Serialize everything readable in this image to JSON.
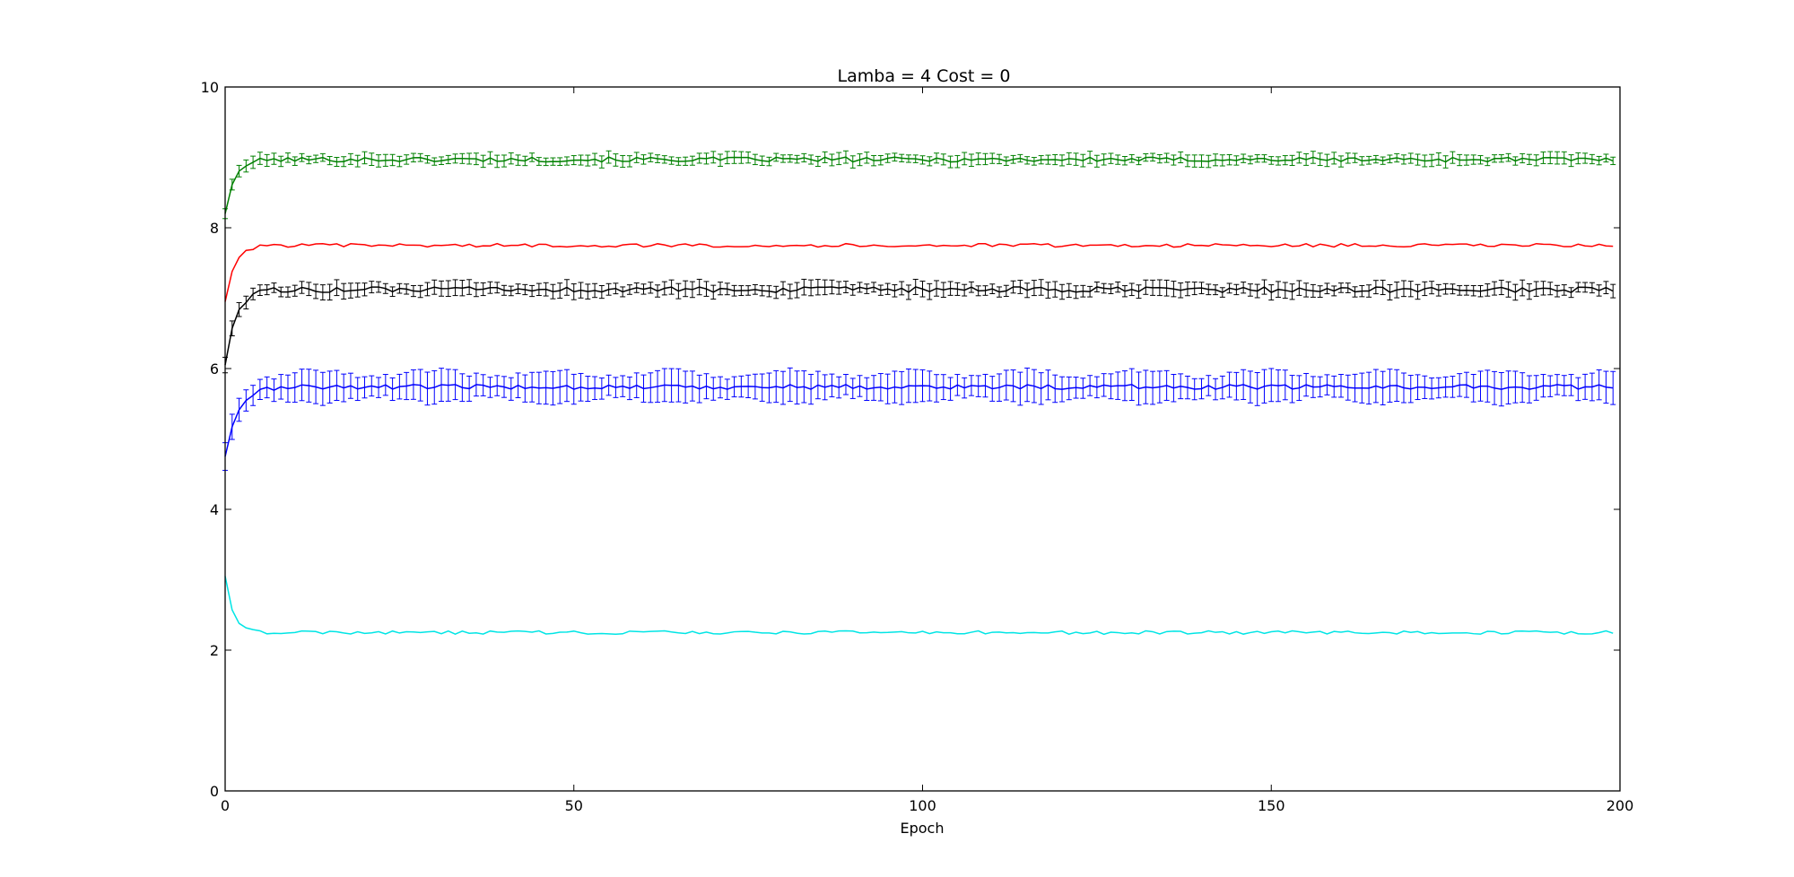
{
  "chart_data": {
    "type": "line",
    "title": "Lamba = 4 Cost = 0",
    "xlabel": "Epoch",
    "ylabel": "",
    "xlim": [
      0,
      200
    ],
    "ylim": [
      0,
      10
    ],
    "x_ticks": [
      "0",
      "50",
      "100",
      "150",
      "200"
    ],
    "y_ticks": [
      "0",
      "2",
      "4",
      "6",
      "8",
      "10"
    ],
    "grid": false,
    "legend": "none",
    "x_count": 200,
    "series": [
      {
        "color": "#008000",
        "start": 8.2,
        "plateau": 8.97,
        "tau": 1.3,
        "noise": 0.035,
        "error": 0.07,
        "errorbars": true
      },
      {
        "color": "#ff0000",
        "start": 6.95,
        "plateau": 7.75,
        "tau": 1.3,
        "noise": 0.025,
        "error": 0,
        "errorbars": false
      },
      {
        "color": "#000000",
        "start": 6.05,
        "plateau": 7.12,
        "tau": 1.5,
        "noise": 0.04,
        "error": 0.09,
        "errorbars": true
      },
      {
        "color": "#0000ff",
        "start": 4.75,
        "plateau": 5.74,
        "tau": 1.8,
        "noise": 0.035,
        "error": 0.19,
        "errorbars": true
      },
      {
        "color": "#00e5e5",
        "start": 3.05,
        "plateau": 2.25,
        "tau": 1.1,
        "noise": 0.025,
        "error": 0,
        "errorbars": false
      }
    ]
  }
}
